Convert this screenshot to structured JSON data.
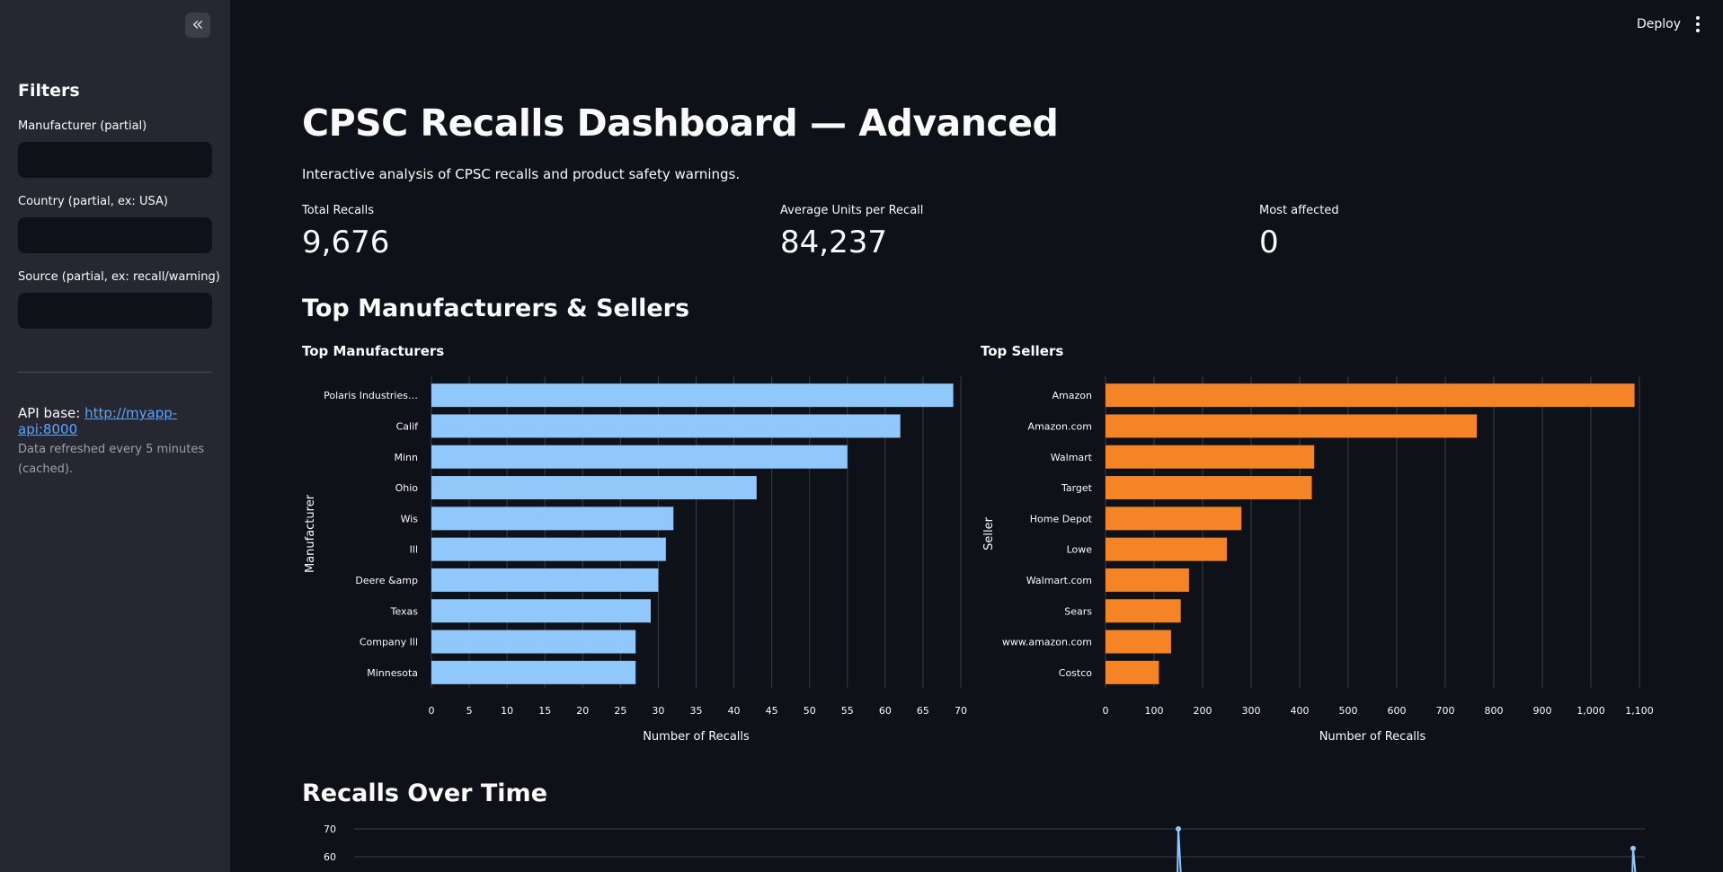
{
  "sidebar": {
    "collapse_glyph": "«",
    "title": "Filters",
    "filters": [
      {
        "label": "Manufacturer (partial)",
        "value": "",
        "placeholder": ""
      },
      {
        "label": "Country (partial, ex: USA)",
        "value": "",
        "placeholder": ""
      },
      {
        "label": "Source (partial, ex: recall/warning)",
        "value": "",
        "placeholder": ""
      }
    ],
    "api_label": "API base: ",
    "api_url": "http://myapp-api:8000",
    "refresh_note": "Data refreshed every 5 minutes (cached)."
  },
  "topbar": {
    "deploy_label": "Deploy",
    "menu_icon": "kebab-menu-icon"
  },
  "main": {
    "title": "CPSC Recalls Dashboard — Advanced",
    "subtitle": "Interactive analysis of CPSC recalls and product safety warnings.",
    "metrics": [
      {
        "label": "Total Recalls",
        "value": "9,676"
      },
      {
        "label": "Average Units per Recall",
        "value": "84,237"
      },
      {
        "label": "Most affected",
        "value": "0"
      }
    ],
    "section_top": "Top Manufacturers & Sellers",
    "section_time": "Recalls Over Time"
  },
  "colors": {
    "manufacturer_bar": "#90c8fb",
    "seller_bar": "#f58426",
    "background": "#0e1117",
    "sidebar": "#262730",
    "link": "#5aa6ff"
  },
  "chart_data": [
    {
      "type": "bar",
      "orientation": "horizontal",
      "title": "Top Manufacturers",
      "xlabel": "Number of Recalls",
      "ylabel": "Manufacturer",
      "categories": [
        "Polaris Industries…",
        "Calif",
        "Minn",
        "Ohio",
        "Wis",
        "Ill",
        "Deere &amp",
        "Texas",
        "Company Ill",
        "Minnesota"
      ],
      "values": [
        69,
        62,
        55,
        43,
        32,
        31,
        30,
        29,
        27,
        27
      ],
      "xlim": [
        0,
        70
      ],
      "xticks": [
        0,
        5,
        10,
        15,
        20,
        25,
        30,
        35,
        40,
        45,
        50,
        55,
        60,
        65,
        70
      ],
      "grid": true
    },
    {
      "type": "bar",
      "orientation": "horizontal",
      "title": "Top Sellers",
      "xlabel": "Number of Recalls",
      "ylabel": "Seller",
      "categories": [
        "Amazon",
        "Amazon.com",
        "Walmart",
        "Target",
        "Home Depot",
        "Lowe",
        "Walmart.com",
        "Sears",
        "www.amazon.com",
        "Costco"
      ],
      "values": [
        1090,
        765,
        430,
        425,
        280,
        250,
        172,
        155,
        135,
        110
      ],
      "xlim": [
        0,
        1100
      ],
      "xticks": [
        0,
        100,
        200,
        300,
        400,
        500,
        600,
        700,
        800,
        900,
        1000,
        1100
      ],
      "xtick_labels": [
        "0",
        "100",
        "200",
        "300",
        "400",
        "500",
        "600",
        "700",
        "800",
        "900",
        "1,000",
        "1,100"
      ],
      "grid": true
    },
    {
      "type": "line",
      "title": "Recalls Over Time",
      "yticks": [
        60,
        70
      ],
      "visible_peaks": [
        70,
        63
      ],
      "grid": true
    }
  ]
}
